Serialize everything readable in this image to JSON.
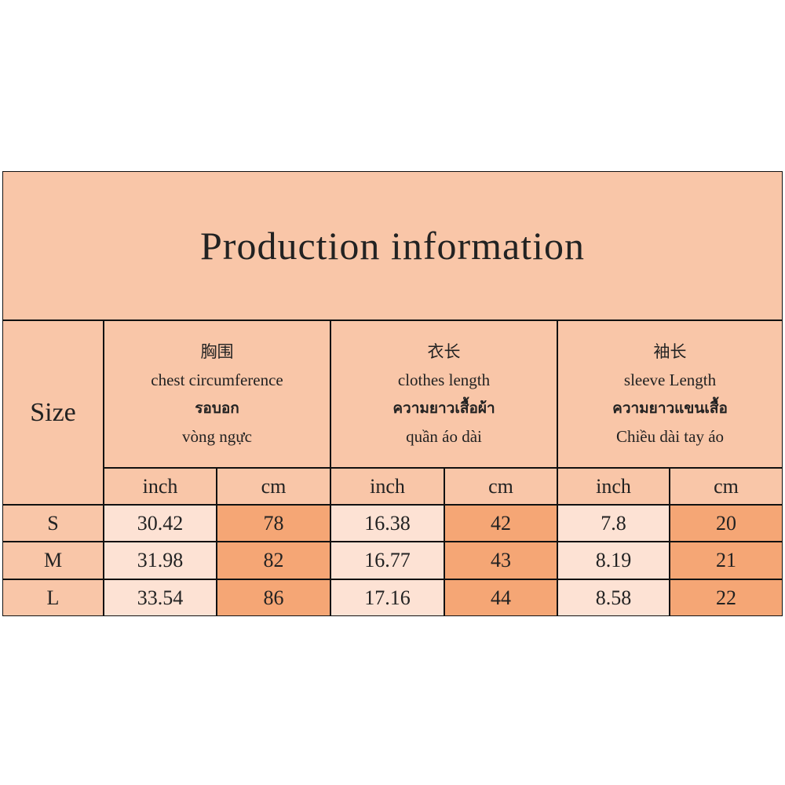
{
  "title": "Production information",
  "size_label": "Size",
  "groups": [
    {
      "lines": [
        "胸围",
        "chest circumference",
        "รอบอก",
        "vòng ngực"
      ]
    },
    {
      "lines": [
        "衣长",
        "clothes length",
        "ความยาวเสื้อผ้า",
        "quần áo dài"
      ]
    },
    {
      "lines": [
        "袖长",
        "sleeve Length",
        "ความยาวแขนเสื้อ",
        "Chiều dài tay áo"
      ]
    }
  ],
  "units": [
    "inch",
    "cm",
    "inch",
    "cm",
    "inch",
    "cm"
  ],
  "rows": [
    {
      "size": "S",
      "values": [
        30.42,
        78,
        16.38,
        42,
        7.8,
        20
      ]
    },
    {
      "size": "M",
      "values": [
        31.98,
        82,
        16.77,
        43,
        8.19,
        21
      ]
    },
    {
      "size": "L",
      "values": [
        33.54,
        86,
        17.16,
        44,
        8.58,
        22
      ]
    }
  ]
}
